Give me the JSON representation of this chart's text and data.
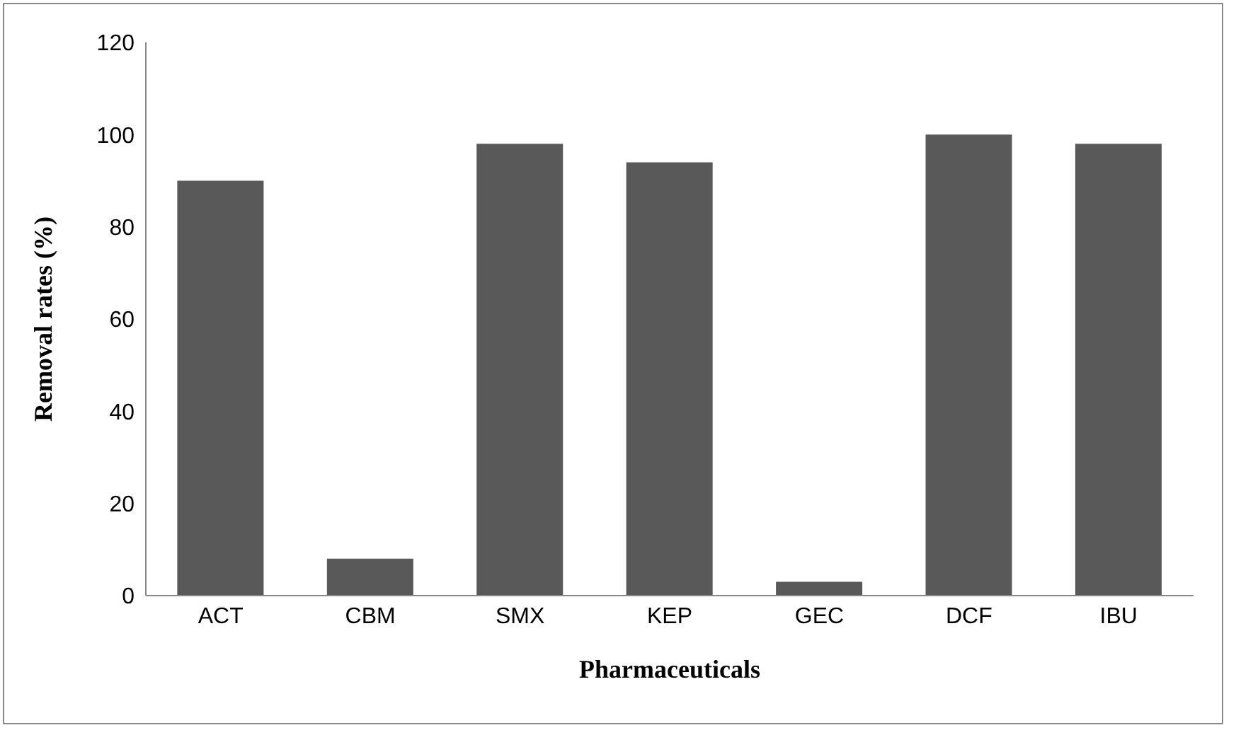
{
  "chart_data": {
    "type": "bar",
    "xlabel": "Pharmaceuticals",
    "ylabel": "Removal rates (%)",
    "categories": [
      "ACT",
      "CBM",
      "SMX",
      "KEP",
      "GEC",
      "DCF",
      "IBU"
    ],
    "values": [
      90,
      8,
      98,
      94,
      3,
      100,
      98
    ],
    "color": "#595959",
    "ylim": [
      0,
      120
    ],
    "yticks": [
      0,
      20,
      40,
      60,
      80,
      100,
      120
    ],
    "grid": false,
    "legend": false
  }
}
